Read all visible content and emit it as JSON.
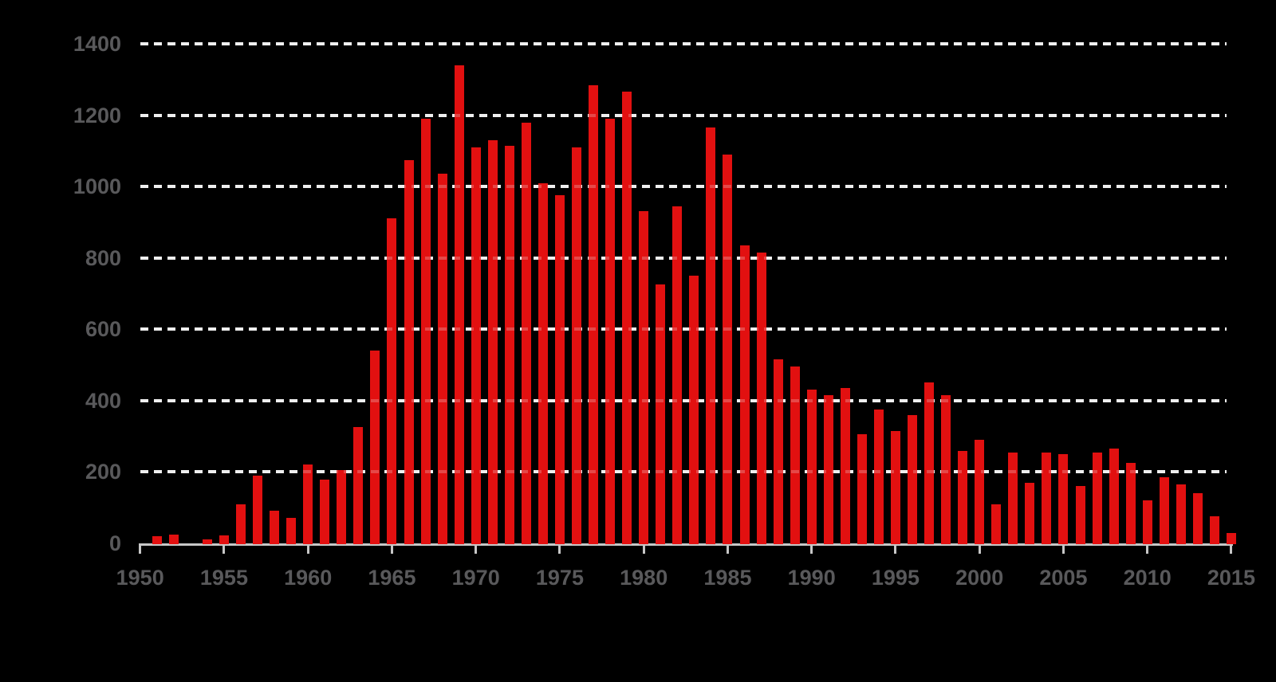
{
  "chart_data": {
    "type": "bar",
    "title": "",
    "xlabel": "",
    "ylabel": "",
    "legend_position": "none",
    "grid": "horizontal-dashed",
    "background_color": "#000000",
    "bar_color": "#e21010",
    "gridline_color": "#efefef",
    "axis_color": "#c7c7c7",
    "tick_label_color": "#59595b",
    "ylim": [
      0,
      1400
    ],
    "ytick_values": [
      0,
      200,
      400,
      600,
      800,
      1000,
      1200,
      1400
    ],
    "ytick_labels": [
      "0",
      "200",
      "400",
      "600",
      "800",
      "1000",
      "1200",
      "1400"
    ],
    "xtick_values": [
      1950,
      1955,
      1960,
      1965,
      1970,
      1975,
      1980,
      1985,
      1990,
      1995,
      2000,
      2005,
      2010,
      2015
    ],
    "xtick_labels": [
      "1950",
      "1955",
      "1960",
      "1965",
      "1970",
      "1975",
      "1980",
      "1985",
      "1990",
      "1995",
      "2000",
      "2005",
      "2010",
      "2015"
    ],
    "categories": [
      1950,
      1951,
      1952,
      1953,
      1954,
      1955,
      1956,
      1957,
      1958,
      1959,
      1960,
      1961,
      1962,
      1963,
      1964,
      1965,
      1966,
      1967,
      1968,
      1969,
      1970,
      1971,
      1972,
      1973,
      1974,
      1975,
      1976,
      1977,
      1978,
      1979,
      1980,
      1981,
      1982,
      1983,
      1984,
      1985,
      1986,
      1987,
      1988,
      1989,
      1990,
      1991,
      1992,
      1993,
      1994,
      1995,
      1996,
      1997,
      1998,
      1999,
      2000,
      2001,
      2002,
      2003,
      2004,
      2005,
      2006,
      2007,
      2008,
      2009,
      2010,
      2011,
      2012,
      2013,
      2014,
      2015
    ],
    "values": [
      0,
      20,
      25,
      0,
      12,
      22,
      110,
      190,
      92,
      72,
      220,
      178,
      205,
      325,
      540,
      910,
      1075,
      1190,
      1035,
      1340,
      1110,
      1130,
      1115,
      1180,
      1010,
      975,
      1110,
      1285,
      1190,
      1265,
      930,
      725,
      945,
      750,
      1165,
      1090,
      835,
      815,
      515,
      495,
      430,
      415,
      435,
      305,
      375,
      315,
      360,
      450,
      415,
      260,
      290,
      110,
      255,
      170,
      255,
      250,
      160,
      255,
      265,
      225,
      120,
      185,
      165,
      140,
      75,
      30
    ]
  }
}
